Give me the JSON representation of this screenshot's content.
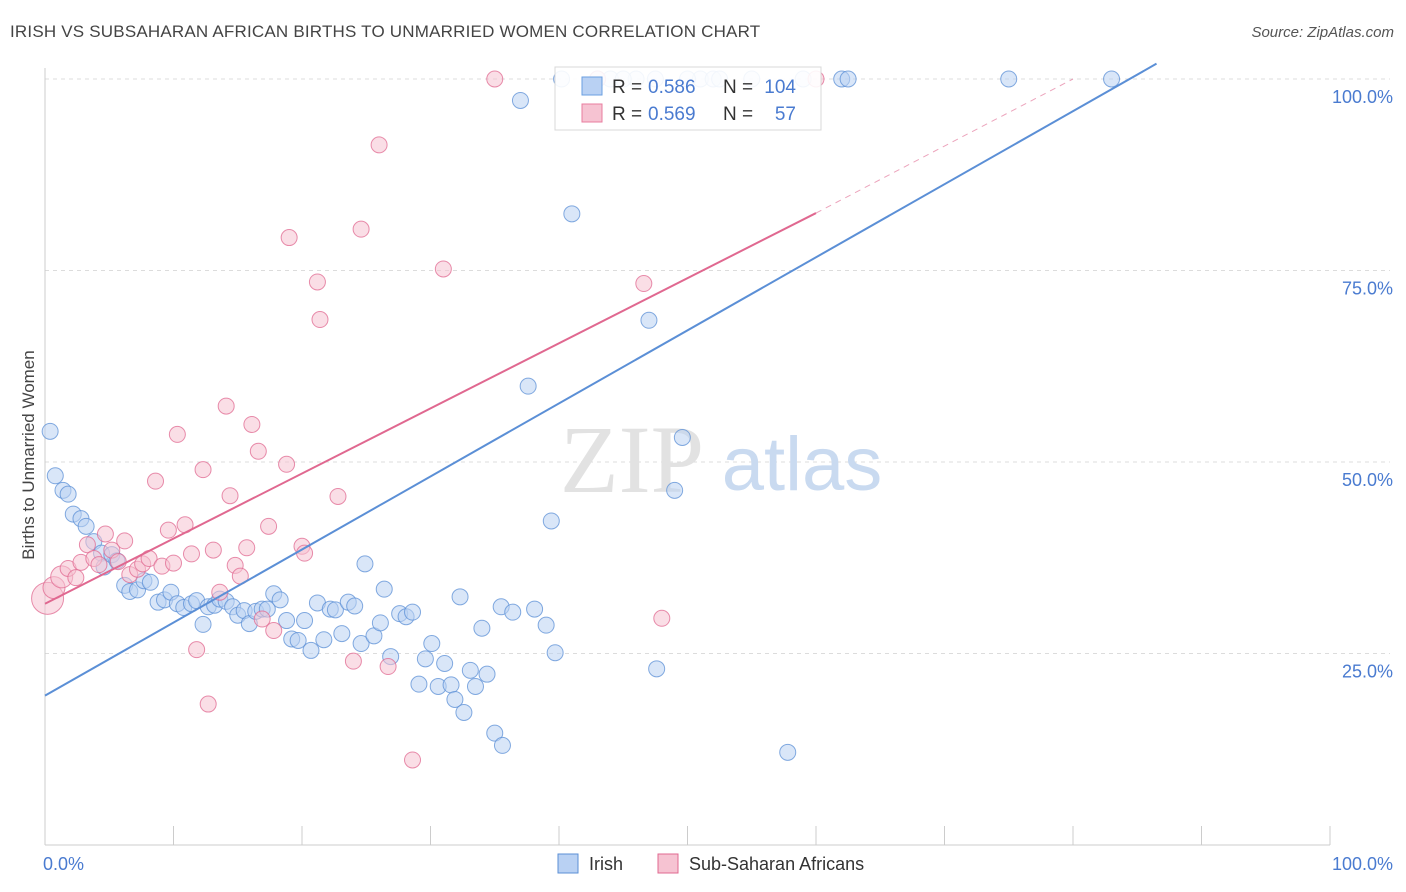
{
  "title": "IRISH VS SUBSAHARAN AFRICAN BIRTHS TO UNMARRIED WOMEN CORRELATION CHART",
  "source": "Source: ZipAtlas.com",
  "watermark": {
    "zip": "ZIP",
    "atlas": "atlas"
  },
  "stats": [
    {
      "r_label": "R =",
      "r_value": "0.586",
      "n_label": "N =",
      "n_value": "104",
      "color": "#6a9fe0",
      "fill": "#b9d1f3"
    },
    {
      "r_label": "R =",
      "r_value": "0.569",
      "n_label": "N =",
      "n_value": "57",
      "color": "#e87d9f",
      "fill": "#f6c3d2"
    }
  ],
  "chart_data": {
    "type": "scatter",
    "title": "IRISH VS SUBSAHARAN AFRICAN BIRTHS TO UNMARRIED WOMEN CORRELATION CHART",
    "xlabel": "",
    "ylabel": "Births to Unmarried Women",
    "xlim": [
      0,
      100
    ],
    "ylim": [
      0,
      102
    ],
    "x_tick_labels": [
      "0.0%",
      "100.0%"
    ],
    "y_ticks": [
      25,
      50,
      75,
      100
    ],
    "y_tick_labels": [
      "25.0%",
      "50.0%",
      "75.0%",
      "100.0%"
    ],
    "grid": true,
    "legend_position": "bottom-center",
    "series": [
      {
        "name": "Irish",
        "color": "#5b8fd6",
        "fill": "#b9d1f3",
        "trend": {
          "x0": 0,
          "y0": 19.5,
          "x1": 86.5,
          "y1": 102
        },
        "points": [
          [
            0.4,
            54
          ],
          [
            0.8,
            48.2
          ],
          [
            1.4,
            46.3
          ],
          [
            1.8,
            45.8
          ],
          [
            2.2,
            43.2
          ],
          [
            2.8,
            42.6
          ],
          [
            3.2,
            41.6
          ],
          [
            3.8,
            39.6
          ],
          [
            4.4,
            38.1
          ],
          [
            4.6,
            36.3
          ],
          [
            5.2,
            37.9
          ],
          [
            5.6,
            37.1
          ],
          [
            6.2,
            33.9
          ],
          [
            6.6,
            33.1
          ],
          [
            7.2,
            33.3
          ],
          [
            7.7,
            34.5
          ],
          [
            8.2,
            34.3
          ],
          [
            8.8,
            31.7
          ],
          [
            9.3,
            32.0
          ],
          [
            9.8,
            33.0
          ],
          [
            10.3,
            31.5
          ],
          [
            10.8,
            31.0
          ],
          [
            11.4,
            31.5
          ],
          [
            11.8,
            31.9
          ],
          [
            12.3,
            28.8
          ],
          [
            12.7,
            31.1
          ],
          [
            13.2,
            31.3
          ],
          [
            13.6,
            32.1
          ],
          [
            14.1,
            31.8
          ],
          [
            14.6,
            31.1
          ],
          [
            15.0,
            30.0
          ],
          [
            15.5,
            30.6
          ],
          [
            15.9,
            28.9
          ],
          [
            16.4,
            30.5
          ],
          [
            16.9,
            30.8
          ],
          [
            17.3,
            30.8
          ],
          [
            17.8,
            32.8
          ],
          [
            18.3,
            32.0
          ],
          [
            18.8,
            29.3
          ],
          [
            19.2,
            26.9
          ],
          [
            19.7,
            26.7
          ],
          [
            20.2,
            29.3
          ],
          [
            20.7,
            25.4
          ],
          [
            21.2,
            31.6
          ],
          [
            21.7,
            26.8
          ],
          [
            22.2,
            30.8
          ],
          [
            22.6,
            30.7
          ],
          [
            23.1,
            27.6
          ],
          [
            23.6,
            31.7
          ],
          [
            24.1,
            31.2
          ],
          [
            24.6,
            26.3
          ],
          [
            24.9,
            36.7
          ],
          [
            25.6,
            27.3
          ],
          [
            26.1,
            29.0
          ],
          [
            26.4,
            33.4
          ],
          [
            26.9,
            24.6
          ],
          [
            27.6,
            30.2
          ],
          [
            28.1,
            29.8
          ],
          [
            28.6,
            30.4
          ],
          [
            29.1,
            21.0
          ],
          [
            29.6,
            24.3
          ],
          [
            30.1,
            26.3
          ],
          [
            30.6,
            20.7
          ],
          [
            31.1,
            23.7
          ],
          [
            31.6,
            20.9
          ],
          [
            31.9,
            19.0
          ],
          [
            32.3,
            32.4
          ],
          [
            32.6,
            17.3
          ],
          [
            33.1,
            22.8
          ],
          [
            33.5,
            20.7
          ],
          [
            34.0,
            28.3
          ],
          [
            34.4,
            22.3
          ],
          [
            35.0,
            14.6
          ],
          [
            35.6,
            13.0
          ],
          [
            35.5,
            31.1
          ],
          [
            36.4,
            30.4
          ],
          [
            37.0,
            97.2
          ],
          [
            37.6,
            59.9
          ],
          [
            38.1,
            30.8
          ],
          [
            39.0,
            28.7
          ],
          [
            39.4,
            42.3
          ],
          [
            39.7,
            25.1
          ],
          [
            40.2,
            100
          ],
          [
            41.0,
            82.4
          ],
          [
            44.0,
            100
          ],
          [
            46.0,
            100
          ],
          [
            47.5,
            100
          ],
          [
            47.0,
            68.5
          ],
          [
            47.6,
            23.0
          ],
          [
            49.6,
            53.2
          ],
          [
            49.0,
            46.3
          ],
          [
            51.0,
            100
          ],
          [
            52.0,
            100
          ],
          [
            52.5,
            100
          ],
          [
            57.8,
            12.1
          ],
          [
            59.0,
            100
          ],
          [
            62.0,
            100
          ],
          [
            62.5,
            100
          ],
          [
            75.0,
            100
          ],
          [
            83.0,
            100
          ],
          [
            55.0,
            100
          ],
          [
            43.0,
            100
          ],
          [
            45.0,
            100
          ],
          [
            50.0,
            100
          ]
        ]
      },
      {
        "name": "Sub-Saharan Africans",
        "color": "#e06890",
        "fill": "#f6c3d2",
        "trend": {
          "x0": 0,
          "y0": 31.5,
          "x1": 60,
          "y1": 82.5
        },
        "trend_ext": {
          "x0": 60,
          "y0": 82.5,
          "x1": 80,
          "y1": 100
        },
        "points": [
          [
            0.2,
            32.2
          ],
          [
            0.7,
            33.6
          ],
          [
            1.3,
            35.0
          ],
          [
            1.8,
            36.1
          ],
          [
            2.4,
            34.9
          ],
          [
            2.8,
            36.9
          ],
          [
            3.3,
            39.2
          ],
          [
            3.8,
            37.4
          ],
          [
            4.2,
            36.6
          ],
          [
            4.7,
            40.6
          ],
          [
            5.2,
            38.5
          ],
          [
            5.7,
            37.0
          ],
          [
            6.2,
            39.7
          ],
          [
            6.6,
            35.3
          ],
          [
            7.2,
            36.0
          ],
          [
            7.6,
            36.7
          ],
          [
            8.1,
            37.4
          ],
          [
            8.6,
            47.5
          ],
          [
            9.1,
            36.4
          ],
          [
            9.6,
            41.1
          ],
          [
            10.0,
            36.8
          ],
          [
            10.3,
            53.6
          ],
          [
            10.9,
            41.8
          ],
          [
            11.4,
            38.0
          ],
          [
            11.8,
            25.5
          ],
          [
            12.3,
            49.0
          ],
          [
            12.7,
            18.4
          ],
          [
            13.1,
            38.5
          ],
          [
            13.6,
            33.0
          ],
          [
            14.1,
            57.3
          ],
          [
            14.4,
            45.6
          ],
          [
            14.8,
            36.5
          ],
          [
            15.2,
            35.1
          ],
          [
            15.7,
            38.8
          ],
          [
            16.1,
            54.9
          ],
          [
            16.6,
            51.4
          ],
          [
            16.9,
            29.5
          ],
          [
            17.4,
            41.6
          ],
          [
            17.8,
            28.0
          ],
          [
            18.8,
            49.7
          ],
          [
            19.0,
            79.3
          ],
          [
            20.0,
            39.0
          ],
          [
            20.2,
            38.1
          ],
          [
            21.2,
            73.5
          ],
          [
            21.4,
            68.6
          ],
          [
            22.8,
            45.5
          ],
          [
            24.0,
            24.0
          ],
          [
            24.6,
            80.4
          ],
          [
            26.0,
            91.4
          ],
          [
            26.7,
            23.3
          ],
          [
            28.6,
            11.1
          ],
          [
            31.0,
            75.2
          ],
          [
            35.0,
            100
          ],
          [
            43.0,
            100
          ],
          [
            46.6,
            73.3
          ],
          [
            48.0,
            29.6
          ],
          [
            60.0,
            100
          ]
        ]
      }
    ]
  }
}
